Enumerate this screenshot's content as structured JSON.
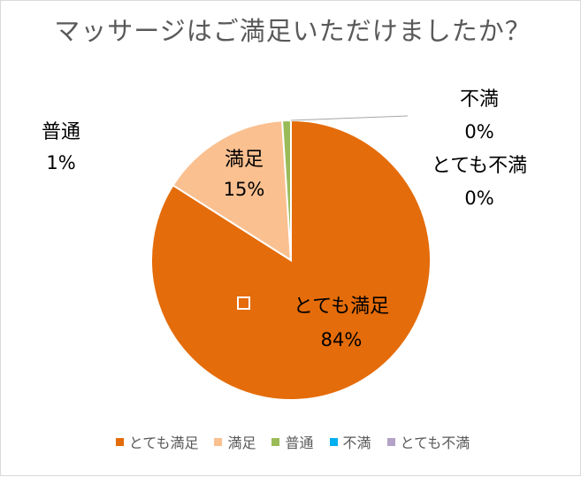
{
  "chart_data": {
    "type": "pie",
    "title": "マッサージはご満足いただけましたか？",
    "categories": [
      "とても満足",
      "満足",
      "普通",
      "不満",
      "とても不満"
    ],
    "values": [
      84,
      15,
      1,
      0,
      0
    ],
    "value_labels": [
      "84%",
      "15%",
      "1%",
      "0%",
      "0%"
    ],
    "colors": [
      "#E46C0A",
      "#FAC090",
      "#9BBB59",
      "#00B0F0",
      "#B3A2C7"
    ],
    "legend_position": "bottom"
  }
}
